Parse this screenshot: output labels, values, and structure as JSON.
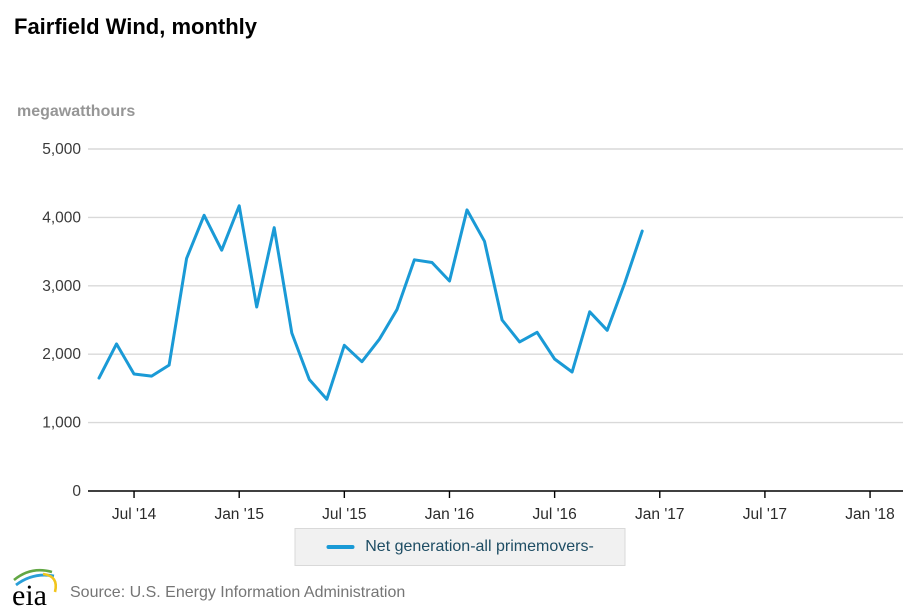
{
  "header": {
    "title": "Fairfield Wind, monthly"
  },
  "chart_data": {
    "type": "line",
    "title": "Fairfield Wind, monthly",
    "unit_label": "megawatthours",
    "xlabel": "",
    "ylabel": "megawatthours",
    "ylim": [
      0,
      5000
    ],
    "grid": "horizontal",
    "legend_position": "bottom",
    "y_ticks": [
      0,
      1000,
      2000,
      3000,
      4000,
      5000
    ],
    "x_ticks": [
      {
        "label": "Jul '14",
        "month_index": 2
      },
      {
        "label": "Jan '15",
        "month_index": 8
      },
      {
        "label": "Jul '15",
        "month_index": 14
      },
      {
        "label": "Jan '16",
        "month_index": 20
      },
      {
        "label": "Jul '16",
        "month_index": 26
      },
      {
        "label": "Jan '17",
        "month_index": 32
      },
      {
        "label": "Jul '17",
        "month_index": 38
      },
      {
        "label": "Jan '18",
        "month_index": 44
      }
    ],
    "x_axis_span_months": 47,
    "x": [
      "May 2014",
      "Jun 2014",
      "Jul 2014",
      "Aug 2014",
      "Sep 2014",
      "Oct 2014",
      "Nov 2014",
      "Dec 2014",
      "Jan 2015",
      "Feb 2015",
      "Mar 2015",
      "Apr 2015",
      "May 2015",
      "Jun 2015",
      "Jul 2015",
      "Aug 2015",
      "Sep 2015",
      "Oct 2015",
      "Nov 2015",
      "Dec 2015",
      "Jan 2016",
      "Feb 2016",
      "Mar 2016",
      "Apr 2016",
      "May 2016",
      "Jun 2016",
      "Jul 2016",
      "Aug 2016",
      "Sep 2016",
      "Oct 2016",
      "Nov 2016",
      "Dec 2016"
    ],
    "series": [
      {
        "name": "Net generation-all primemovers-",
        "color": "#1a9ad6",
        "values": [
          1650,
          2150,
          1710,
          1680,
          1840,
          3400,
          4030,
          3520,
          4170,
          2690,
          3850,
          2310,
          1630,
          1340,
          2130,
          1890,
          2220,
          2650,
          3380,
          3340,
          3070,
          4110,
          3650,
          2500,
          2180,
          2320,
          1930,
          1740,
          2620,
          2350,
          3040,
          3800
        ]
      }
    ]
  },
  "legend": {
    "label": "Net generation-all primemovers-"
  },
  "footer": {
    "logo_text": "eia",
    "source": "Source: U.S. Energy Information Administration"
  },
  "colors": {
    "line": "#1a9ad6",
    "grid": "#d9d9d9",
    "axis": "#000000",
    "tick_text": "#2b2b2b",
    "y_tick_text": "#3a3a3a",
    "legend_bg": "#f1f1f1",
    "legend_border": "#d9d9d9",
    "legend_text": "#1e4d64",
    "unit_text": "#969696",
    "source_text": "#757575",
    "logo_green": "#62a744",
    "logo_blue": "#2a9fd8",
    "logo_yellow": "#f2c51c"
  }
}
